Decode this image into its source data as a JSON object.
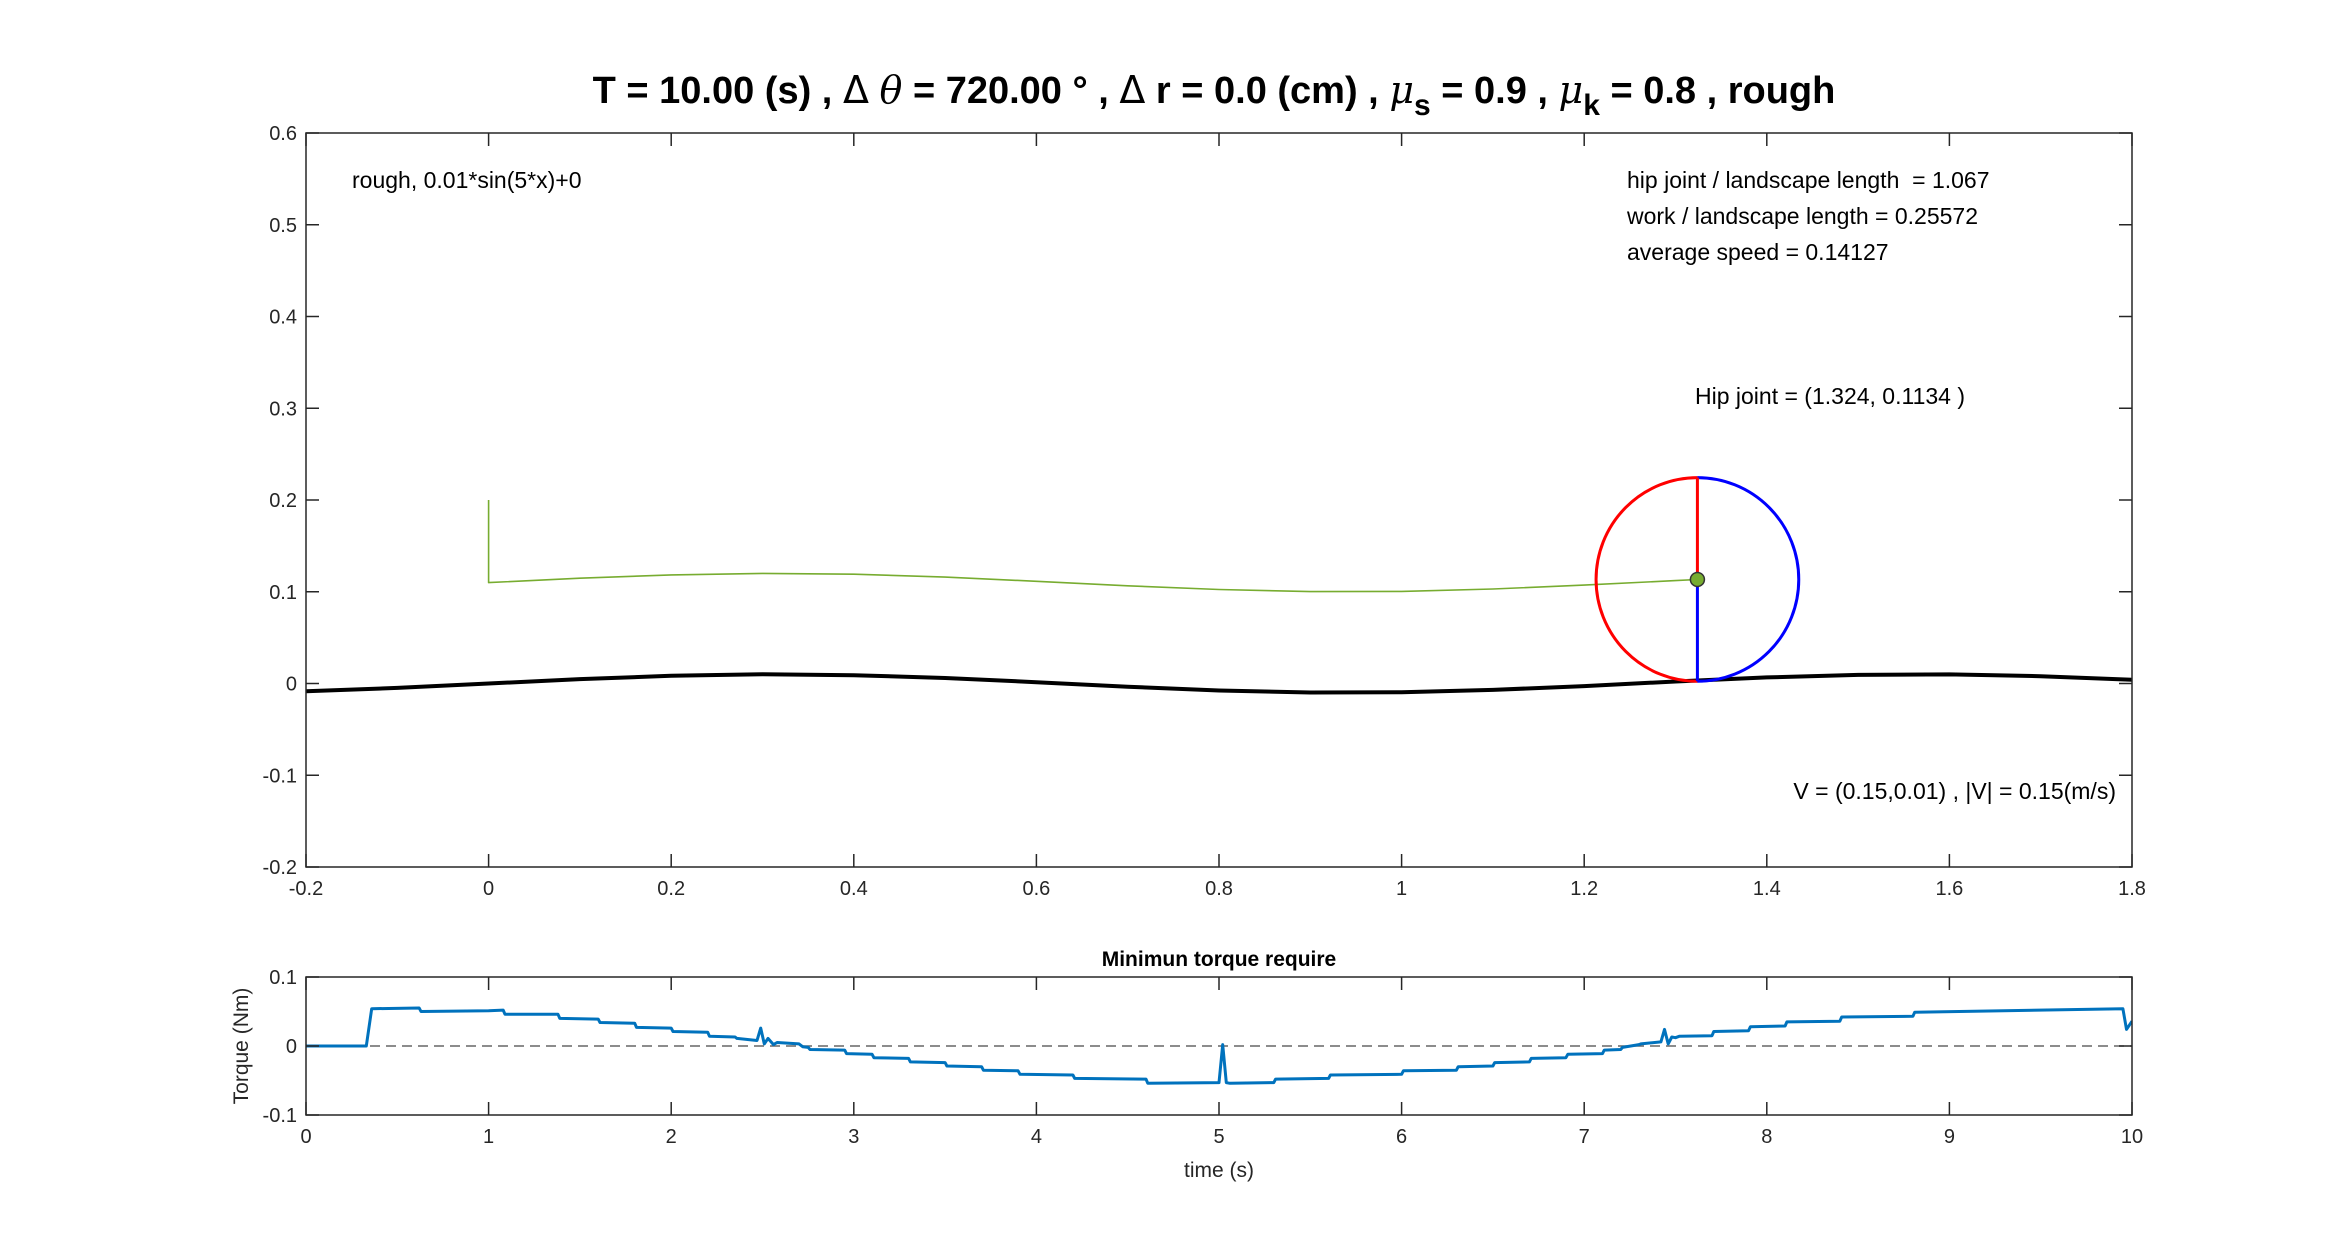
{
  "chart_data": [
    {
      "type": "line",
      "title": {
        "parts": [
          {
            "t": "T = 10.00 (s) , "
          },
          {
            "t": "Δ",
            "style": "sym"
          },
          {
            "t": " "
          },
          {
            "t": "θ",
            "style": "italic"
          },
          {
            "t": " = 720.00 ° , "
          },
          {
            "t": "Δ",
            "style": "sym"
          },
          {
            "t": " r = 0.0 (cm) , "
          },
          {
            "t": "μ",
            "style": "italic"
          },
          {
            "t": "s",
            "style": "sub"
          },
          {
            "t": " = 0.9 , "
          },
          {
            "t": "μ",
            "style": "italic"
          },
          {
            "t": "k",
            "style": "sub"
          },
          {
            "t": " = 0.8 , rough"
          }
        ]
      },
      "xlim": [
        -0.2,
        1.8
      ],
      "ylim": [
        -0.2,
        0.6
      ],
      "xticks": [
        -0.2,
        0,
        0.2,
        0.4,
        0.6,
        0.8,
        1,
        1.2,
        1.4,
        1.6,
        1.8
      ],
      "xtick_labels": [
        "-0.2",
        "0",
        "0.2",
        "0.4",
        "0.6",
        "0.8",
        "1",
        "1.2",
        "1.4",
        "1.6",
        "1.8"
      ],
      "yticks": [
        -0.2,
        -0.1,
        0,
        0.1,
        0.2,
        0.3,
        0.4,
        0.5,
        0.6
      ],
      "ytick_labels": [
        "-0.2",
        "-0.1",
        "0",
        "0.1",
        "0.2",
        "0.3",
        "0.4",
        "0.5",
        "0.6"
      ],
      "grid": false,
      "series": [
        {
          "kind": "terrain",
          "color": "#000000",
          "x": [
            -0.2,
            -0.1,
            0.0,
            0.1,
            0.2,
            0.3,
            0.4,
            0.5,
            0.6,
            0.7,
            0.8,
            0.9,
            1.0,
            1.1,
            1.2,
            1.3,
            1.4,
            1.5,
            1.6,
            1.7,
            1.8
          ],
          "y": [
            -0.0084,
            -0.0048,
            0.0,
            0.0048,
            0.0084,
            0.01,
            0.0091,
            0.006,
            0.0014,
            -0.0035,
            -0.0076,
            -0.0098,
            -0.0096,
            -0.007,
            -0.0028,
            0.0022,
            0.0066,
            0.0094,
            0.0099,
            0.008,
            0.0041
          ]
        },
        {
          "kind": "hip-trajectory",
          "color": "#77ac30",
          "x": [
            0.0,
            0.0,
            0.1,
            0.2,
            0.3,
            0.4,
            0.5,
            0.6,
            0.7,
            0.8,
            0.9,
            1.0,
            1.1,
            1.2,
            1.3,
            1.324
          ],
          "y": [
            0.2,
            0.11,
            0.1148,
            0.1184,
            0.12,
            0.1191,
            0.116,
            0.1114,
            0.1065,
            0.1024,
            0.1002,
            0.1004,
            0.103,
            0.1072,
            0.1122,
            0.1134
          ]
        }
      ],
      "wheel": {
        "center": [
          1.324,
          0.1134
        ],
        "radius": 0.111,
        "left_color": "#ff0000",
        "right_color": "#0000ff",
        "hub_color": "#77ac30"
      },
      "annotations": {
        "terrain": "rough, 0.01*sin(5*x)+0",
        "hip_ratio": "hip joint / landscape length  = 1.067",
        "work_ratio": "work / landscape length = 0.25572",
        "avg_speed": "average speed = 0.14127",
        "hip_joint": "Hip joint = (1.324, 0.1134 )",
        "velocity": "V = (0.15,0.01) , |V| = 0.15(m/s)"
      },
      "hip_joint_color": "#008000"
    },
    {
      "type": "line",
      "title": "Minimun torque require",
      "xlabel": "time (s)",
      "ylabel": "Torque (Nm)",
      "xlim": [
        0,
        10
      ],
      "ylim": [
        -0.1,
        0.1
      ],
      "xticks": [
        0,
        1,
        2,
        3,
        4,
        5,
        6,
        7,
        8,
        9,
        10
      ],
      "xtick_labels": [
        "0",
        "1",
        "2",
        "3",
        "4",
        "5",
        "6",
        "7",
        "8",
        "9",
        "10"
      ],
      "yticks": [
        -0.1,
        0,
        0.1
      ],
      "ytick_labels": [
        "-0.1",
        "0",
        "0.1"
      ],
      "grid": false,
      "reference_line": {
        "y": 0,
        "style": "dashed",
        "color": "#666666"
      },
      "series": [
        {
          "color": "#0072bd",
          "x": [
            0,
            0.33,
            0.36,
            0.62,
            0.63,
            1.0,
            1.08,
            1.09,
            1.38,
            1.39,
            1.6,
            1.61,
            1.8,
            1.81,
            2.0,
            2.01,
            2.2,
            2.21,
            2.35,
            2.36,
            2.47,
            2.49,
            2.51,
            2.53,
            2.56,
            2.58,
            2.7,
            2.72,
            2.75,
            2.76,
            2.95,
            2.96,
            3.1,
            3.11,
            3.3,
            3.31,
            3.5,
            3.51,
            3.7,
            3.71,
            3.9,
            3.91,
            4.2,
            4.21,
            4.6,
            4.61,
            5.0,
            5.02,
            5.04,
            5.06,
            5.3,
            5.31,
            5.6,
            5.61,
            6.0,
            6.01,
            6.3,
            6.31,
            6.5,
            6.51,
            6.7,
            6.71,
            6.9,
            6.91,
            7.1,
            7.11,
            7.2,
            7.21,
            7.3,
            7.31,
            7.42,
            7.44,
            7.46,
            7.48,
            7.5,
            7.52,
            7.7,
            7.71,
            7.9,
            7.91,
            8.1,
            8.11,
            8.4,
            8.41,
            8.8,
            8.81,
            9.95,
            9.97,
            10.0
          ],
          "y": [
            0,
            0,
            0.054,
            0.055,
            0.05,
            0.051,
            0.052,
            0.046,
            0.046,
            0.04,
            0.039,
            0.034,
            0.033,
            0.027,
            0.026,
            0.021,
            0.02,
            0.014,
            0.013,
            0.011,
            0.008,
            0.026,
            0.003,
            0.011,
            0.002,
            0.005,
            0.003,
            -0.001,
            -0.002,
            -0.005,
            -0.006,
            -0.011,
            -0.012,
            -0.017,
            -0.018,
            -0.023,
            -0.024,
            -0.029,
            -0.03,
            -0.035,
            -0.036,
            -0.041,
            -0.042,
            -0.047,
            -0.048,
            -0.054,
            -0.053,
            0.002,
            -0.053,
            -0.054,
            -0.053,
            -0.048,
            -0.047,
            -0.042,
            -0.041,
            -0.036,
            -0.035,
            -0.03,
            -0.029,
            -0.024,
            -0.023,
            -0.018,
            -0.017,
            -0.012,
            -0.011,
            -0.006,
            -0.005,
            -0.002,
            0.002,
            0.003,
            0.006,
            0.024,
            0.003,
            0.013,
            0.012,
            0.014,
            0.015,
            0.021,
            0.022,
            0.028,
            0.029,
            0.035,
            0.036,
            0.042,
            0.043,
            0.049,
            0.054,
            0.024,
            0.036
          ]
        }
      ]
    }
  ]
}
